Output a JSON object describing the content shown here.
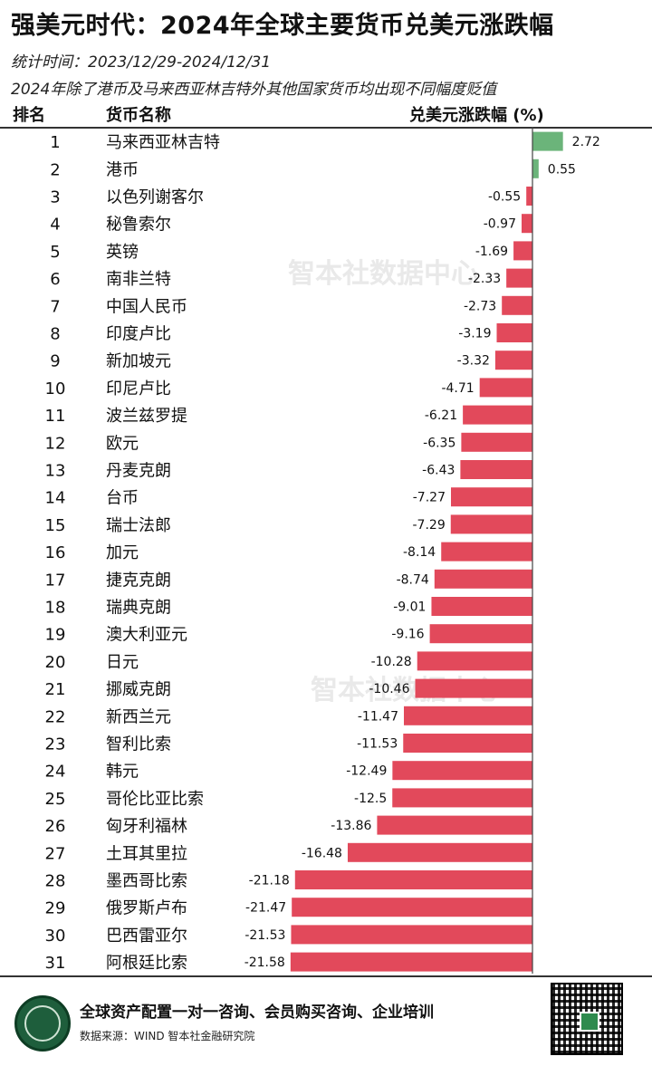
{
  "header": {
    "title": "强美元时代：2024年全球主要货币兑美元涨跌幅",
    "period": "统计时间：2023/12/29-2024/12/31",
    "note": "2024年除了港币及马来西亚林吉特外其他国家货币均出现不同幅度贬值"
  },
  "columns": {
    "rank": "排名",
    "name": "货币名称",
    "value": "兑美元涨跌幅 (%)"
  },
  "watermark": "智本社数据中心",
  "footer": {
    "slogan": "全球资产配置一对一咨询、会员购买咨询、企业培训",
    "source": "数据来源：WIND 智本社金融研究院"
  },
  "colors": {
    "positive": "#6bb47a",
    "negative": "#e2495b"
  },
  "chart_data": {
    "type": "bar",
    "orientation": "horizontal",
    "categories": [
      "马来西亚林吉特",
      "港币",
      "以色列谢客尔",
      "秘鲁索尔",
      "英镑",
      "南非兰特",
      "中国人民币",
      "印度卢比",
      "新加坡元",
      "印尼卢比",
      "波兰兹罗提",
      "欧元",
      "丹麦克朗",
      "台币",
      "瑞士法郎",
      "加元",
      "捷克克朗",
      "瑞典克朗",
      "澳大利亚元",
      "日元",
      "挪威克朗",
      "新西兰元",
      "智利比索",
      "韩元",
      "哥伦比亚比索",
      "匈牙利福林",
      "土耳其里拉",
      "墨西哥比索",
      "俄罗斯卢布",
      "巴西雷亚尔",
      "阿根廷比索"
    ],
    "ranks": [
      "1",
      "2",
      "3",
      "4",
      "5",
      "6",
      "7",
      "8",
      "9",
      "10",
      "11",
      "12",
      "13",
      "14",
      "15",
      "16",
      "17",
      "18",
      "19",
      "20",
      "21",
      "22",
      "23",
      "24",
      "25",
      "26",
      "27",
      "28",
      "29",
      "30",
      "31"
    ],
    "values": [
      2.72,
      0.55,
      -0.55,
      -0.97,
      -1.69,
      -2.33,
      -2.73,
      -3.19,
      -3.32,
      -4.71,
      -6.21,
      -6.35,
      -6.43,
      -7.27,
      -7.29,
      -8.14,
      -8.74,
      -9.01,
      -9.16,
      -10.28,
      -10.46,
      -11.47,
      -11.53,
      -12.49,
      -12.5,
      -13.86,
      -16.48,
      -21.18,
      -21.47,
      -21.53,
      -21.58
    ],
    "labels": [
      "2.72",
      "0.55",
      "-0.55",
      "-0.97",
      "-1.69",
      "-2.33",
      "-2.73",
      "-3.19",
      "-3.32",
      "-4.71",
      "-6.21",
      "-6.35",
      "-6.43",
      "-7.27",
      "-7.29",
      "-8.14",
      "-8.74",
      "-9.01",
      "-9.16",
      "-10.28",
      "-10.46",
      "-11.47",
      "-11.53",
      "-12.49",
      "-12.5",
      "-13.86",
      "-16.48",
      "-21.18",
      "-21.47",
      "-21.53",
      "-21.58"
    ],
    "title": "强美元时代：2024年全球主要货币兑美元涨跌幅",
    "xlabel": "兑美元涨跌幅 (%)",
    "ylabel": "",
    "xlim": [
      -21.58,
      2.72
    ],
    "grid": false,
    "legend": "none"
  }
}
